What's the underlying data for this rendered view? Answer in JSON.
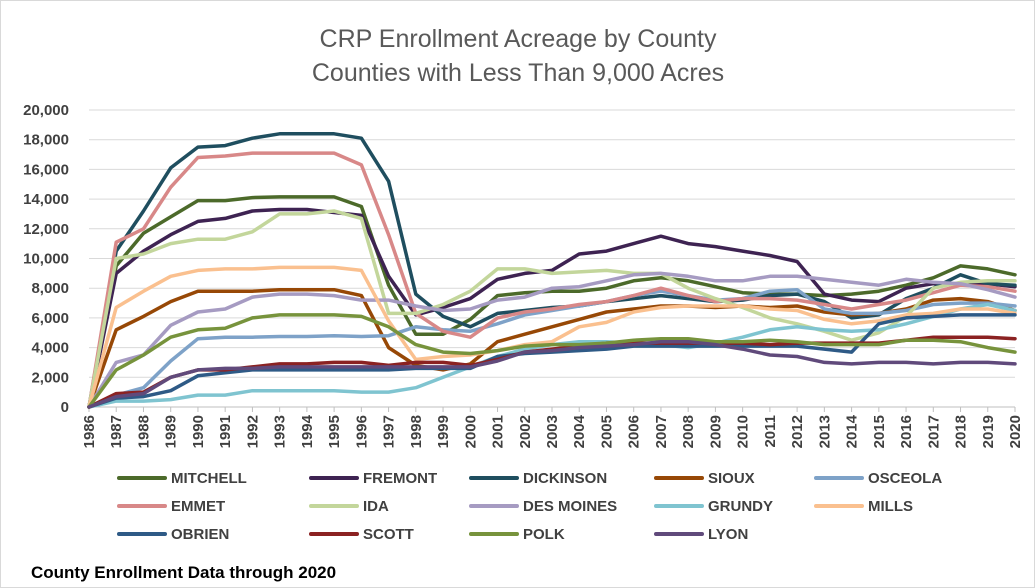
{
  "footnote": "County Enrollment Data through 2020",
  "chart_data": {
    "type": "line",
    "title": [
      "CRP Enrollment Acreage by County",
      "Counties with Less Than 9,000 Acres"
    ],
    "xlabel": "",
    "ylabel": "",
    "ylim": [
      0,
      20000
    ],
    "y_tick_labels": [
      "0",
      "2,000",
      "4,000",
      "6,000",
      "8,000",
      "10,000",
      "12,000",
      "14,000",
      "16,000",
      "18,000",
      "20,000"
    ],
    "grid": true,
    "legend_position": "bottom",
    "x": [
      "1986",
      "1987",
      "1988",
      "1989",
      "1990",
      "1991",
      "1992",
      "1993",
      "1994",
      "1995",
      "1996",
      "1997",
      "1998",
      "1999",
      "2000",
      "2001",
      "2002",
      "2003",
      "2004",
      "2005",
      "2006",
      "2007",
      "2008",
      "2009",
      "2010",
      "2011",
      "2012",
      "2013",
      "2014",
      "2015",
      "2016",
      "2017",
      "2018",
      "2019",
      "2020"
    ],
    "series": [
      {
        "name": "MITCHELL",
        "color": "#4c6a2a",
        "values": [
          0,
          9500,
          11700,
          12800,
          13900,
          13900,
          14100,
          14150,
          14150,
          14150,
          13500,
          8200,
          4900,
          4900,
          5900,
          7500,
          7700,
          7800,
          7800,
          8000,
          8500,
          8700,
          8500,
          8100,
          7700,
          7600,
          7600,
          7500,
          7600,
          7800,
          8200,
          8700,
          9500,
          9300,
          8900
        ]
      },
      {
        "name": "FREMONT",
        "color": "#3e2352",
        "values": [
          0,
          9000,
          10500,
          11600,
          12500,
          12700,
          13200,
          13300,
          13300,
          13100,
          12900,
          8800,
          6200,
          6700,
          7300,
          8600,
          9000,
          9200,
          10300,
          10500,
          11000,
          11500,
          11000,
          10800,
          10500,
          10200,
          9800,
          7600,
          7200,
          7100,
          8000,
          8300,
          8300,
          8300,
          8100
        ]
      },
      {
        "name": "DICKINSON",
        "color": "#1f4e5f",
        "values": [
          0,
          10500,
          13200,
          16100,
          17500,
          17600,
          18100,
          18400,
          18400,
          18400,
          18100,
          15200,
          7600,
          6100,
          5400,
          6300,
          6500,
          6700,
          6800,
          7100,
          7300,
          7500,
          7300,
          7100,
          7200,
          7500,
          7600,
          7100,
          6000,
          6200,
          7300,
          8000,
          8900,
          8300,
          8200
        ]
      },
      {
        "name": "SIOUX",
        "color": "#974806",
        "values": [
          0,
          5200,
          6100,
          7100,
          7800,
          7800,
          7800,
          7900,
          7900,
          7900,
          7500,
          4000,
          2800,
          2500,
          2900,
          4400,
          4900,
          5400,
          5900,
          6400,
          6600,
          6800,
          6800,
          6700,
          6800,
          6700,
          6800,
          6400,
          6200,
          6300,
          6600,
          7200,
          7300,
          7100,
          6500
        ]
      },
      {
        "name": "OSCEOLA",
        "color": "#7ea2c8",
        "values": [
          0,
          800,
          1300,
          3100,
          4600,
          4700,
          4700,
          4750,
          4750,
          4800,
          4750,
          4800,
          5400,
          5200,
          5100,
          5600,
          6200,
          6500,
          6800,
          7100,
          7500,
          7800,
          7500,
          7200,
          7300,
          7800,
          7900,
          6600,
          6300,
          6300,
          6500,
          6900,
          7000,
          7000,
          6800
        ]
      },
      {
        "name": "EMMET",
        "color": "#d88888",
        "values": [
          0,
          11100,
          12000,
          14800,
          16800,
          16900,
          17100,
          17100,
          17100,
          17100,
          16300,
          11600,
          6300,
          5100,
          4700,
          6000,
          6400,
          6600,
          6900,
          7100,
          7500,
          8000,
          7500,
          7100,
          7300,
          7300,
          7200,
          6900,
          6600,
          6900,
          7200,
          7700,
          8200,
          8100,
          7800
        ]
      },
      {
        "name": "IDA",
        "color": "#c3d69b",
        "values": [
          0,
          10000,
          10300,
          11000,
          11300,
          11300,
          11800,
          13000,
          13000,
          13200,
          12700,
          6300,
          6300,
          6900,
          7800,
          9300,
          9300,
          9000,
          9100,
          9200,
          9000,
          9000,
          8000,
          7300,
          6700,
          6000,
          5600,
          5100,
          4500,
          5000,
          6100,
          8000,
          8400,
          8500,
          8500
        ]
      },
      {
        "name": "DES MOINES",
        "color": "#a69bc2",
        "values": [
          0,
          3000,
          3500,
          5500,
          6400,
          6600,
          7400,
          7600,
          7600,
          7500,
          7200,
          7200,
          6800,
          6500,
          6600,
          7200,
          7400,
          8000,
          8100,
          8500,
          8900,
          9000,
          8800,
          8500,
          8500,
          8800,
          8800,
          8600,
          8400,
          8200,
          8600,
          8400,
          8300,
          7900,
          7400
        ]
      },
      {
        "name": "GRUNDY",
        "color": "#7fc4d0",
        "values": [
          0,
          400,
          400,
          500,
          800,
          800,
          1100,
          1100,
          1100,
          1100,
          1000,
          1000,
          1300,
          2000,
          2700,
          3400,
          3900,
          4200,
          4400,
          4400,
          4300,
          4200,
          4000,
          4300,
          4700,
          5200,
          5400,
          5200,
          5100,
          5200,
          5600,
          6100,
          6600,
          6900,
          6500
        ]
      },
      {
        "name": "MILLS",
        "color": "#fac08f",
        "values": [
          0,
          6700,
          7800,
          8800,
          9200,
          9300,
          9300,
          9400,
          9400,
          9400,
          9200,
          5800,
          3200,
          3400,
          3500,
          3800,
          4200,
          4400,
          5400,
          5700,
          6400,
          6700,
          6800,
          6800,
          6800,
          6600,
          6500,
          5900,
          5600,
          5800,
          6200,
          6300,
          6600,
          6600,
          6300
        ]
      },
      {
        "name": "OBRIEN",
        "color": "#2e5a86",
        "values": [
          0,
          600,
          700,
          1100,
          2100,
          2300,
          2500,
          2500,
          2500,
          2500,
          2500,
          2500,
          2600,
          2600,
          2600,
          3400,
          3600,
          3700,
          3800,
          3900,
          4100,
          4100,
          4100,
          4100,
          4100,
          4100,
          4100,
          3900,
          3700,
          5600,
          6000,
          6100,
          6200,
          6200,
          6200
        ]
      },
      {
        "name": "SCOTT",
        "color": "#8b2222",
        "values": [
          0,
          900,
          1000,
          2000,
          2500,
          2500,
          2700,
          2900,
          2900,
          3000,
          3000,
          2800,
          3000,
          3000,
          2800,
          3200,
          3700,
          3900,
          4100,
          4300,
          4300,
          4300,
          4300,
          4300,
          4300,
          4200,
          4300,
          4300,
          4300,
          4300,
          4500,
          4700,
          4700,
          4700,
          4600
        ]
      },
      {
        "name": "POLK",
        "color": "#77933c",
        "values": [
          0,
          2500,
          3500,
          4700,
          5200,
          5300,
          6000,
          6200,
          6200,
          6200,
          6100,
          5400,
          4200,
          3700,
          3600,
          3800,
          4100,
          4200,
          4200,
          4300,
          4500,
          4600,
          4600,
          4400,
          4400,
          4500,
          4400,
          4200,
          4200,
          4200,
          4500,
          4500,
          4400,
          4000,
          3700
        ]
      },
      {
        "name": "LYON",
        "color": "#604a7b",
        "values": [
          0,
          700,
          900,
          2000,
          2500,
          2600,
          2600,
          2700,
          2700,
          2700,
          2700,
          2700,
          2700,
          2700,
          2700,
          3100,
          3700,
          3800,
          4000,
          4100,
          4200,
          4400,
          4400,
          4200,
          3900,
          3500,
          3400,
          3000,
          2900,
          3000,
          3000,
          2900,
          3000,
          3000,
          2900
        ]
      }
    ]
  }
}
